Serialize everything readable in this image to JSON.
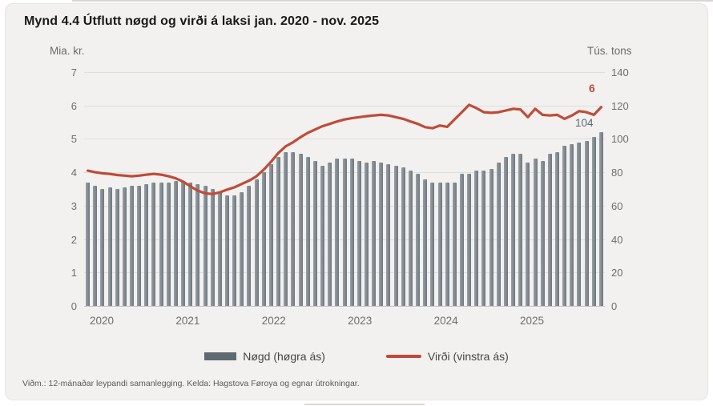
{
  "chart": {
    "title": "Mynd 4.4 Útflutt nøgd og virði á laksi jan. 2020 - nov. 2025",
    "left_axis_title": "Mia. kr.",
    "right_axis_title": "Tús. tons",
    "line_end_label": "6",
    "bar_end_label": "104"
  },
  "legend": {
    "bars": "Nøgd (høgra ás)",
    "line": "Virði (vinstra ás)"
  },
  "footnote": "Viðm.: 12-mánaðar leypandi samanlegging. Kelda: Hagstova Føroya og egnar útrokningar.",
  "colors": {
    "bar": "#6f7a84",
    "bar_legend": "#5f6a72",
    "line": "#bf4b39",
    "background": "#f2f1ef",
    "grid": "#e0ded9",
    "axis_text": "#6e6e6e"
  },
  "chart_data": {
    "type": "bar",
    "subtype": "bar+line combo, monthly 12-month rolling sums",
    "x_start": "2020-01",
    "x_end": "2025-11",
    "n_points": 71,
    "x_tick_labels": [
      "2020",
      "2021",
      "2022",
      "2023",
      "2024",
      "2025"
    ],
    "left_axis": {
      "title": "Mia. kr.",
      "min": 0,
      "max": 7,
      "ticks": [
        0,
        1,
        2,
        3,
        4,
        5,
        6,
        7
      ]
    },
    "right_axis": {
      "title": "Tús. tons",
      "min": 0,
      "max": 140,
      "ticks": [
        0,
        20,
        40,
        60,
        80,
        100,
        120,
        140
      ]
    },
    "grid": "horizontal only",
    "legend_position": "bottom center",
    "series": [
      {
        "name": "Nøgd (høgra ás)",
        "type": "bar",
        "axis": "right",
        "unit": "tús. tons",
        "end_label": "104",
        "values": [
          74,
          72,
          70,
          71,
          70,
          71,
          72,
          72,
          73,
          74,
          74,
          74,
          75,
          75,
          74,
          73,
          72,
          70,
          68,
          66,
          66,
          68,
          72,
          76,
          80,
          85,
          89,
          92,
          92,
          91,
          89,
          87,
          84,
          86,
          88,
          88,
          88,
          87,
          86,
          87,
          86,
          85,
          84,
          83,
          81,
          79,
          76,
          74,
          74,
          74,
          74,
          79,
          79,
          81,
          81,
          82,
          86,
          89,
          91,
          91,
          86,
          88,
          87,
          91,
          92,
          96,
          97,
          98,
          99,
          101,
          104
        ]
      },
      {
        "name": "Virði (vinstra ás)",
        "type": "line",
        "axis": "left",
        "unit": "mia. kr.",
        "end_label": "6",
        "values": [
          4.05,
          4.0,
          3.97,
          3.95,
          3.92,
          3.9,
          3.88,
          3.9,
          3.93,
          3.95,
          3.93,
          3.88,
          3.82,
          3.72,
          3.58,
          3.45,
          3.37,
          3.35,
          3.4,
          3.48,
          3.55,
          3.65,
          3.75,
          3.88,
          4.08,
          4.32,
          4.58,
          4.78,
          4.9,
          5.05,
          5.18,
          5.28,
          5.38,
          5.45,
          5.52,
          5.58,
          5.62,
          5.65,
          5.68,
          5.7,
          5.72,
          5.7,
          5.65,
          5.6,
          5.52,
          5.45,
          5.35,
          5.32,
          5.4,
          5.36,
          5.58,
          5.8,
          6.02,
          5.92,
          5.8,
          5.78,
          5.8,
          5.85,
          5.9,
          5.88,
          5.65,
          5.9,
          5.72,
          5.7,
          5.72,
          5.6,
          5.7,
          5.83,
          5.8,
          5.72,
          5.95
        ]
      }
    ]
  }
}
